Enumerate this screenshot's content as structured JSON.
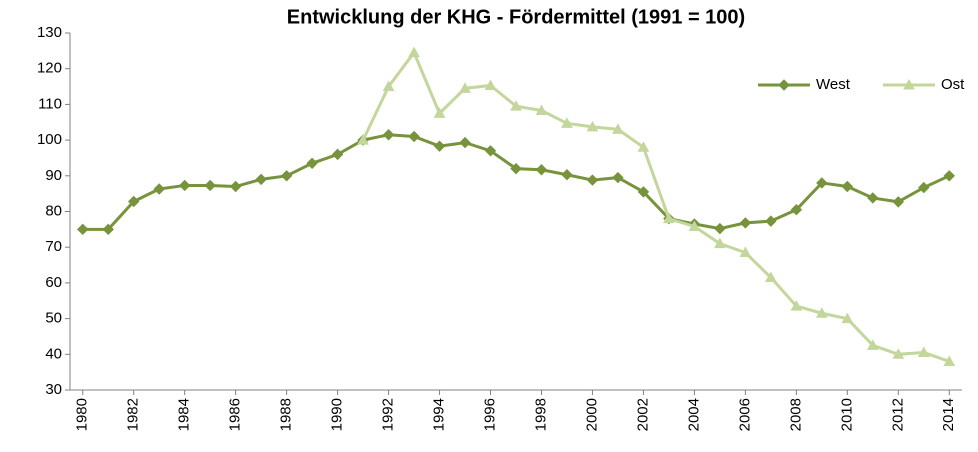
{
  "chart_data": {
    "type": "line",
    "title": "Entwicklung der KHG - Fördermittel (1991 = 100)",
    "x": [
      1980,
      1981,
      1982,
      1983,
      1984,
      1985,
      1986,
      1987,
      1988,
      1989,
      1990,
      1991,
      1992,
      1993,
      1994,
      1995,
      1996,
      1997,
      1998,
      1999,
      2000,
      2001,
      2002,
      2003,
      2004,
      2005,
      2006,
      2007,
      2008,
      2009,
      2010,
      2011,
      2012,
      2013,
      2014
    ],
    "series": [
      {
        "name": "West",
        "color": "#77933c",
        "marker": "diamond",
        "values": [
          75,
          75,
          82.8,
          86.3,
          87.3,
          87.3,
          87,
          89,
          90,
          93.5,
          96,
          100,
          101.5,
          101,
          98.3,
          99.3,
          97,
          92,
          91.7,
          90.3,
          88.8,
          89.5,
          85.5,
          78,
          76.5,
          75.2,
          76.8,
          77.3,
          80.5,
          88,
          87,
          83.8,
          82.7,
          86.7,
          90
        ]
      },
      {
        "name": "Ost",
        "color": "#c3d69b",
        "marker": "triangle",
        "values": [
          null,
          null,
          null,
          null,
          null,
          null,
          null,
          null,
          null,
          null,
          null,
          100,
          115,
          124.5,
          107.5,
          114.5,
          115.3,
          109.5,
          108.3,
          104.7,
          103.7,
          103,
          98,
          78,
          75.8,
          71,
          68.5,
          61.5,
          53.5,
          51.5,
          50,
          42.5,
          40,
          40.5,
          38
        ]
      }
    ],
    "xlim": [
      1979.5,
      2014.5
    ],
    "xticks": [
      1980,
      1982,
      1984,
      1986,
      1988,
      1990,
      1992,
      1994,
      1996,
      1998,
      2000,
      2002,
      2004,
      2006,
      2008,
      2010,
      2012,
      2014
    ],
    "ylim": [
      30,
      130
    ],
    "yticks": [
      30,
      40,
      50,
      60,
      70,
      80,
      90,
      100,
      110,
      120,
      130
    ],
    "legend": "top-right"
  }
}
